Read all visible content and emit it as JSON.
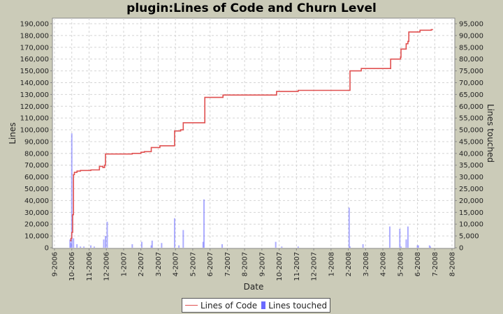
{
  "chart_data": {
    "type": "line+bar",
    "title": "plugin:Lines of Code and Churn Level",
    "xlabel": "Date",
    "ylabel": "Lines",
    "y2label": "Lines touched",
    "ylim": [
      0,
      195000
    ],
    "y2lim": [
      0,
      97500
    ],
    "yticks": [
      "0",
      "10,000",
      "20,000",
      "30,000",
      "40,000",
      "50,000",
      "60,000",
      "70,000",
      "80,000",
      "90,000",
      "100,000",
      "110,000",
      "120,000",
      "130,000",
      "140,000",
      "150,000",
      "160,000",
      "170,000",
      "180,000",
      "190,000"
    ],
    "y2ticks": [
      "0",
      "5,000",
      "10,000",
      "15,000",
      "20,000",
      "25,000",
      "30,000",
      "35,000",
      "40,000",
      "45,000",
      "50,000",
      "55,000",
      "60,000",
      "65,000",
      "70,000",
      "75,000",
      "80,000",
      "85,000",
      "90,000",
      "95,000"
    ],
    "xticks": [
      "9-2006",
      "10-2006",
      "11-2006",
      "12-2006",
      "1-2007",
      "2-2007",
      "3-2007",
      "4-2007",
      "5-2007",
      "6-2007",
      "7-2007",
      "8-2007",
      "9-2007",
      "10-2007",
      "11-2007",
      "12-2007",
      "1-2008",
      "2-2008",
      "3-2008",
      "4-2008",
      "5-2008",
      "6-2008",
      "7-2008",
      "8-2008"
    ],
    "grid": true,
    "legend_position": "bottom",
    "series": [
      {
        "name": "Lines of Code",
        "type": "step-line",
        "color": "#e05050",
        "points_month_offset": [
          [
            0.9,
            6000
          ],
          [
            0.95,
            8000
          ],
          [
            1.0,
            13000
          ],
          [
            1.05,
            28000
          ],
          [
            1.1,
            62000
          ],
          [
            1.15,
            64000
          ],
          [
            1.3,
            65000
          ],
          [
            1.5,
            65500
          ],
          [
            1.8,
            65500
          ],
          [
            2.1,
            66000
          ],
          [
            2.4,
            66000
          ],
          [
            2.6,
            69000
          ],
          [
            2.8,
            68000
          ],
          [
            2.9,
            70000
          ],
          [
            2.95,
            79500
          ],
          [
            3.4,
            79500
          ],
          [
            4.5,
            80000
          ],
          [
            5.0,
            81000
          ],
          [
            5.2,
            81500
          ],
          [
            5.6,
            85000
          ],
          [
            6.1,
            86500
          ],
          [
            6.9,
            86500
          ],
          [
            6.95,
            99000
          ],
          [
            7.3,
            100000
          ],
          [
            7.45,
            106000
          ],
          [
            8.6,
            106000
          ],
          [
            8.7,
            127500
          ],
          [
            9.7,
            127500
          ],
          [
            9.75,
            129500
          ],
          [
            12.8,
            129500
          ],
          [
            12.85,
            132500
          ],
          [
            14.0,
            132500
          ],
          [
            14.1,
            133500
          ],
          [
            17.05,
            133500
          ],
          [
            17.1,
            150000
          ],
          [
            17.7,
            150000
          ],
          [
            17.75,
            152000
          ],
          [
            19.4,
            152000
          ],
          [
            19.45,
            160000
          ],
          [
            19.98,
            160000
          ],
          [
            20.02,
            161500
          ],
          [
            20.05,
            168500
          ],
          [
            20.3,
            168500
          ],
          [
            20.35,
            173000
          ],
          [
            20.45,
            175000
          ],
          [
            20.5,
            183000
          ],
          [
            21.1,
            183000
          ],
          [
            21.15,
            184500
          ],
          [
            21.75,
            184500
          ],
          [
            21.8,
            185000
          ],
          [
            21.9,
            185000
          ]
        ]
      },
      {
        "name": "Lines touched",
        "type": "bar",
        "color": "#6a6aff",
        "axis": "right",
        "bars_month_offset": [
          [
            0.9,
            3500
          ],
          [
            0.95,
            2000
          ],
          [
            1.0,
            48500
          ],
          [
            1.1,
            4000
          ],
          [
            1.3,
            1500
          ],
          [
            1.5,
            500
          ],
          [
            1.7,
            500
          ],
          [
            2.1,
            1000
          ],
          [
            2.3,
            500
          ],
          [
            2.85,
            3500
          ],
          [
            2.95,
            5000
          ],
          [
            3.05,
            11000
          ],
          [
            4.5,
            1500
          ],
          [
            5.05,
            2500
          ],
          [
            5.6,
            1000
          ],
          [
            5.65,
            3000
          ],
          [
            6.2,
            2000
          ],
          [
            6.95,
            12500
          ],
          [
            7.2,
            1000
          ],
          [
            7.45,
            7500
          ],
          [
            8.6,
            2500
          ],
          [
            8.65,
            20500
          ],
          [
            9.7,
            1500
          ],
          [
            12.8,
            2500
          ],
          [
            13.15,
            500
          ],
          [
            14.1,
            500
          ],
          [
            17.05,
            17000
          ],
          [
            17.1,
            500
          ],
          [
            17.85,
            1500
          ],
          [
            19.4,
            9000
          ],
          [
            19.98,
            8000
          ],
          [
            20.05,
            500
          ],
          [
            20.35,
            3500
          ],
          [
            20.45,
            9000
          ],
          [
            21.0,
            1000
          ],
          [
            21.05,
            1000
          ],
          [
            21.7,
            1000
          ],
          [
            21.75,
            500
          ]
        ]
      }
    ]
  },
  "legend": {
    "items": [
      {
        "label": "Lines of Code"
      },
      {
        "label": "Lines touched"
      }
    ]
  }
}
